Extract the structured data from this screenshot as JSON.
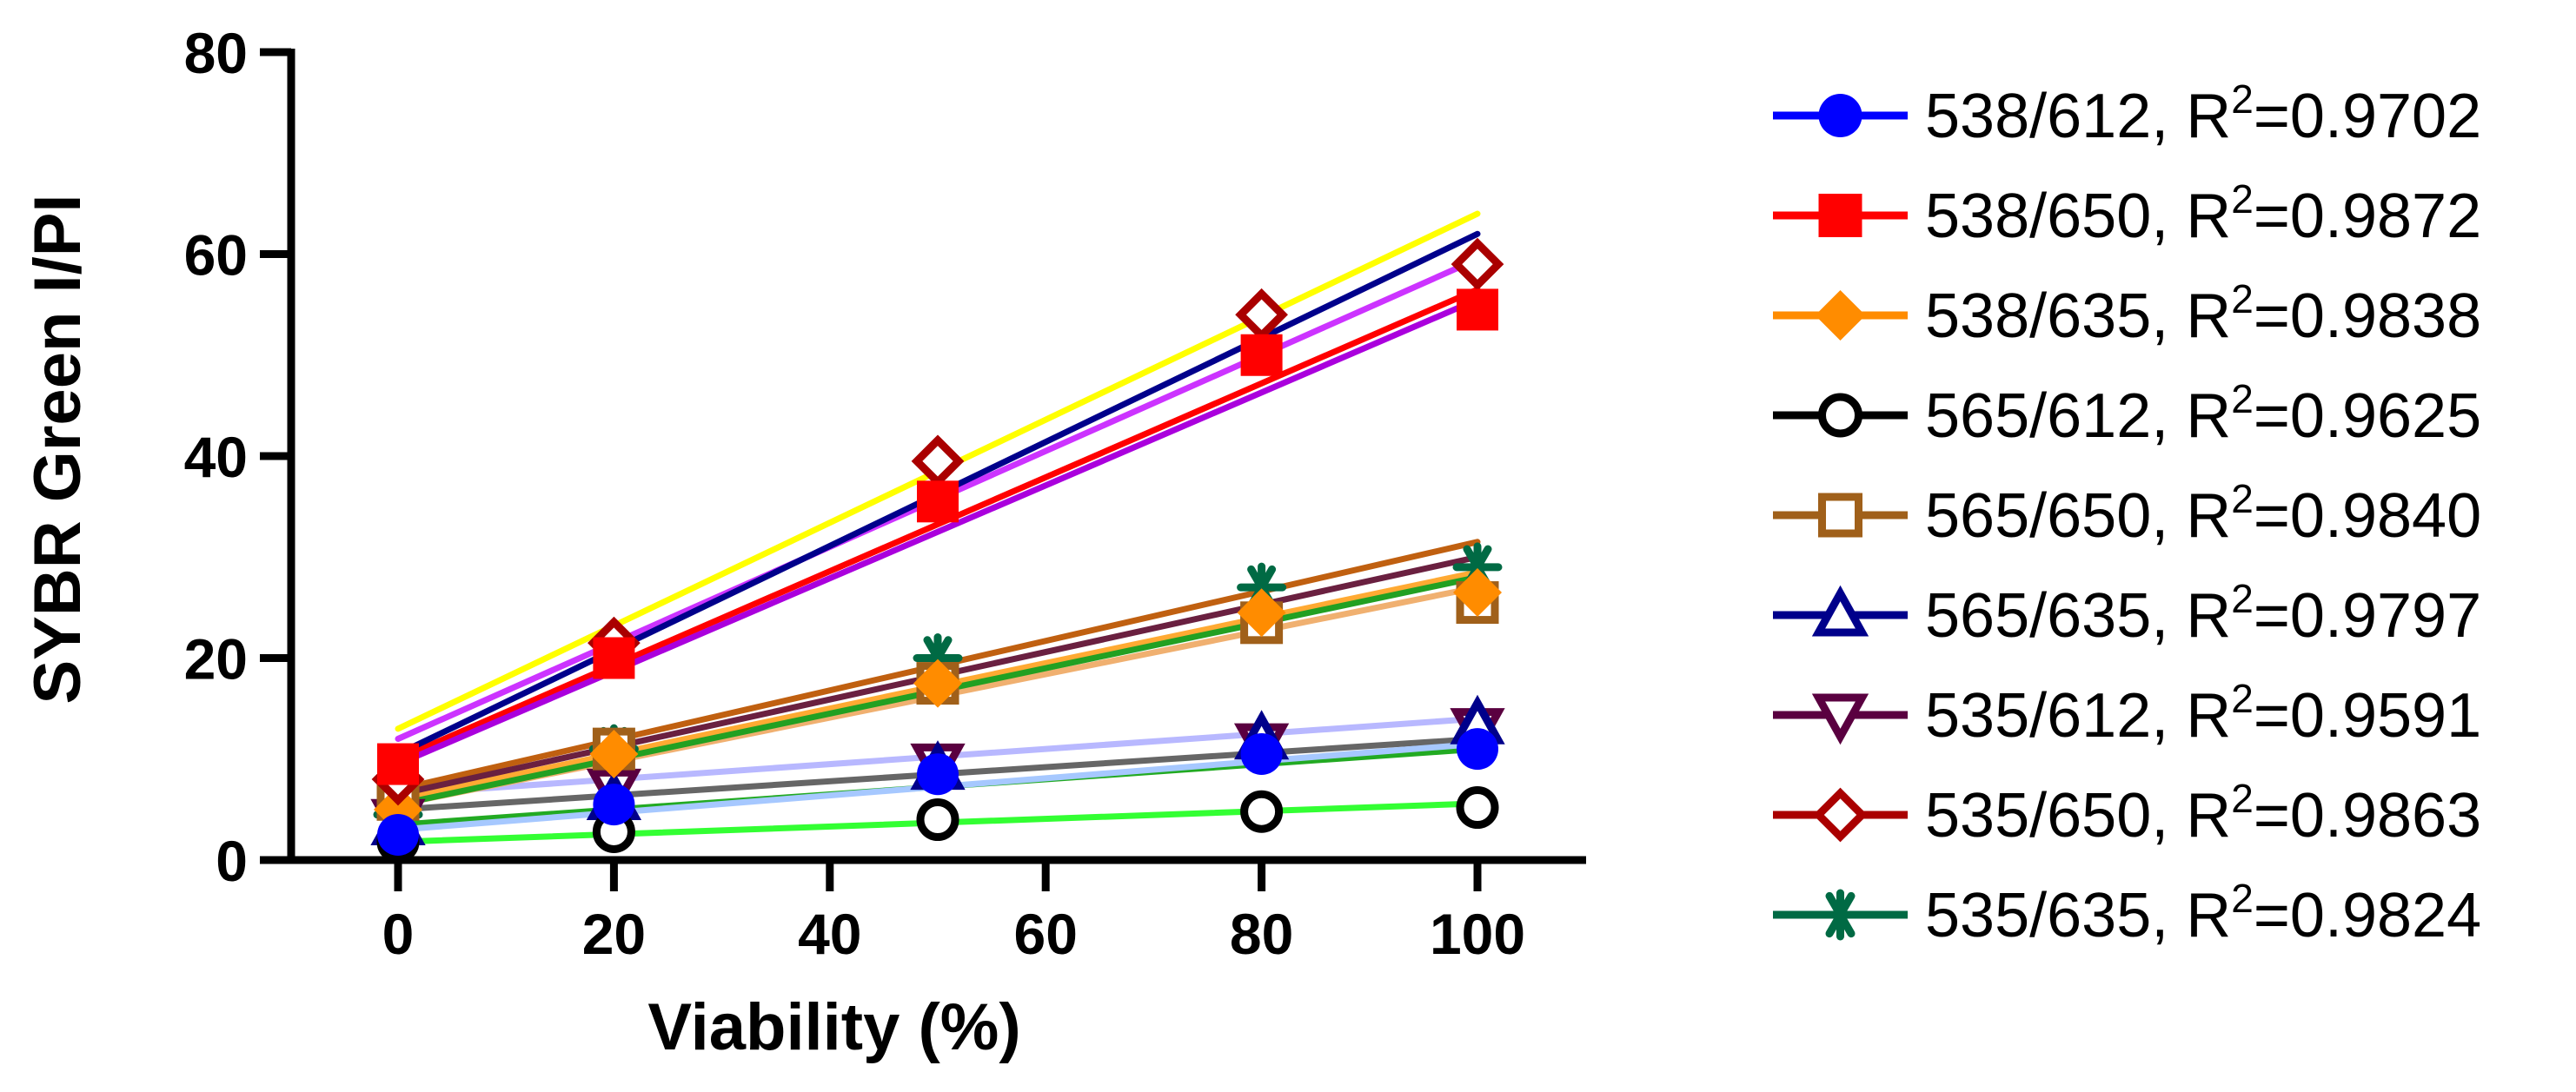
{
  "chart_data": {
    "type": "scatter",
    "xlabel": "Viability (%)",
    "ylabel": "SYBR Green I/PI",
    "xlim": [
      -12,
      110
    ],
    "ylim": [
      0,
      80
    ],
    "x_ticks": [
      0,
      20,
      40,
      60,
      80,
      100
    ],
    "y_ticks": [
      0,
      20,
      40,
      60,
      80
    ],
    "grid": false,
    "legend_position": "right",
    "x": [
      0,
      20,
      50,
      80,
      100
    ],
    "series": [
      {
        "name": "538/612",
        "r2_label": "R",
        "r2_exp": "2",
        "r2_value": "=0.9702",
        "values": [
          2.5,
          5.5,
          8.5,
          10.5,
          11.0
        ],
        "marker": "circle-filled",
        "color": "#0000ff",
        "fit_color": "#a6c8ff",
        "fit": [
          3.0,
          11.5
        ]
      },
      {
        "name": "538/650",
        "r2_label": "R",
        "r2_exp": "2",
        "r2_value": "=0.9872",
        "values": [
          9.5,
          20.0,
          35.5,
          50.0,
          54.5
        ],
        "marker": "square-filled",
        "color": "#ff0000",
        "fit_color": "#ff0000",
        "fit": [
          10.0,
          56.5
        ]
      },
      {
        "name": "538/635",
        "r2_label": "R",
        "r2_exp": "2",
        "r2_value": "=0.9838",
        "values": [
          5.0,
          10.5,
          17.5,
          24.5,
          26.5
        ],
        "marker": "diamond-filled",
        "color": "#ff8c00",
        "fit_color": "#f0b070",
        "fit": [
          5.5,
          27.0
        ]
      },
      {
        "name": "565/612",
        "r2_label": "R",
        "r2_exp": "2",
        "r2_value": "=0.9625",
        "values": [
          1.8,
          2.8,
          4.0,
          4.8,
          5.2
        ],
        "marker": "circle-open",
        "color": "#000000",
        "fit_color": "#33ff33",
        "fit": [
          1.8,
          5.6
        ]
      },
      {
        "name": "565/650",
        "r2_label": "R",
        "r2_exp": "2",
        "r2_value": "=0.9840",
        "values": [
          6.0,
          11.0,
          17.5,
          23.5,
          25.5
        ],
        "marker": "square-open",
        "color": "#a0601a",
        "fit_color": "#c06010",
        "fit": [
          7.0,
          31.5
        ]
      },
      {
        "name": "565/635",
        "r2_label": "R",
        "r2_exp": "2",
        "r2_value": "=0.9797",
        "values": [
          3.5,
          6.0,
          9.0,
          12.0,
          13.5
        ],
        "marker": "triangle-open",
        "color": "#00008b",
        "fit_color": "#00008b",
        "fit": [
          10.5,
          62.0
        ]
      },
      {
        "name": "535/612",
        "r2_label": "R",
        "r2_exp": "2",
        "r2_value": "=0.9591",
        "values": [
          4.0,
          7.0,
          9.5,
          11.5,
          13.0
        ],
        "marker": "triangle-down-open",
        "color": "#5a0040",
        "fit_color": "#6a2040",
        "fit": [
          6.5,
          30.0
        ]
      },
      {
        "name": "535/650",
        "r2_label": "R",
        "r2_exp": "2",
        "r2_value": "=0.9863",
        "values": [
          8.0,
          21.5,
          39.5,
          54.0,
          59.0
        ],
        "marker": "diamond-open",
        "color": "#aa0000",
        "fit_color": "#aa00dd",
        "fit": [
          9.5,
          55.5
        ]
      },
      {
        "name": "535/635",
        "r2_label": "R",
        "r2_exp": "2",
        "r2_value": "=0.9824",
        "values": [
          4.5,
          11.0,
          20.0,
          27.0,
          29.0
        ],
        "marker": "asterisk",
        "color": "#006a44",
        "fit_color": "#22a022",
        "fit": [
          5.5,
          28.0
        ]
      }
    ],
    "extra_fit_lines": [
      {
        "color": "#ffff00",
        "fit": [
          13.0,
          64.0
        ]
      },
      {
        "color": "#cc33ff",
        "fit": [
          12.0,
          59.5
        ]
      },
      {
        "color": "#22aa22",
        "fit": [
          3.5,
          11.0
        ]
      },
      {
        "color": "#666666",
        "fit": [
          5.0,
          12.0
        ]
      },
      {
        "color": "#b8b8ff",
        "fit": [
          6.5,
          14.0
        ]
      },
      {
        "color": "#ffaa33",
        "fit": [
          6.0,
          28.5
        ]
      }
    ]
  }
}
